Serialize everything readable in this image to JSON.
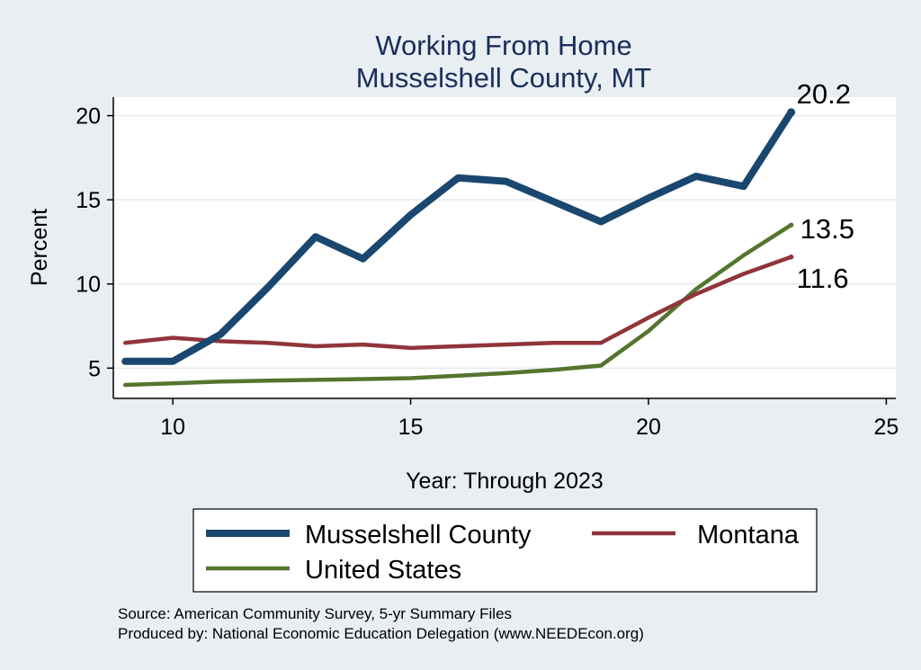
{
  "chart_data": {
    "type": "line",
    "title": "Working From Home",
    "subtitle": "Musselshell County, MT",
    "xlabel": "Year: Through 2023",
    "ylabel": "Percent",
    "xlim": [
      8.75,
      25.2
    ],
    "ylim": [
      3.2,
      21.1
    ],
    "x_ticks": [
      10,
      15,
      20,
      25
    ],
    "y_ticks": [
      5,
      10,
      15,
      20
    ],
    "grid": true,
    "legend_position": "bottom",
    "series": [
      {
        "name": "Musselshell County",
        "color": "#1a476f",
        "width": 8,
        "x": [
          9,
          10,
          11,
          12,
          13,
          14,
          15,
          16,
          17,
          18,
          19,
          20,
          21,
          22,
          23
        ],
        "values": [
          5.4,
          5.4,
          7.0,
          9.8,
          12.8,
          11.5,
          14.1,
          16.3,
          16.1,
          14.9,
          13.7,
          15.1,
          16.4,
          15.8,
          20.2
        ],
        "end_label": "20.2"
      },
      {
        "name": "Montana",
        "color": "#90353b",
        "width": 4.5,
        "x": [
          9,
          10,
          11,
          12,
          13,
          14,
          15,
          16,
          17,
          18,
          19,
          20,
          21,
          22,
          23
        ],
        "values": [
          6.5,
          6.8,
          6.6,
          6.5,
          6.3,
          6.4,
          6.2,
          6.3,
          6.4,
          6.5,
          6.5,
          8.0,
          9.4,
          10.6,
          11.6
        ],
        "end_label": "11.6"
      },
      {
        "name": "United States",
        "color": "#55752f",
        "width": 4.5,
        "x": [
          9,
          10,
          11,
          12,
          13,
          14,
          15,
          16,
          17,
          18,
          19,
          20,
          21,
          22,
          23
        ],
        "values": [
          4.0,
          4.1,
          4.2,
          4.25,
          4.3,
          4.35,
          4.4,
          4.55,
          4.7,
          4.9,
          5.15,
          7.2,
          9.7,
          11.7,
          13.5
        ],
        "end_label": "13.5"
      }
    ]
  },
  "footer": {
    "source": "Source: American Community Survey, 5-yr Summary Files",
    "produced_by": "Produced by: National Economic Education Delegation (www.NEEDEcon.org)"
  },
  "colors": {
    "page_background": "#e8eef2",
    "plot_background": "#ffffff",
    "gridline": "#e6ebef",
    "title": "#1a2e5a"
  }
}
